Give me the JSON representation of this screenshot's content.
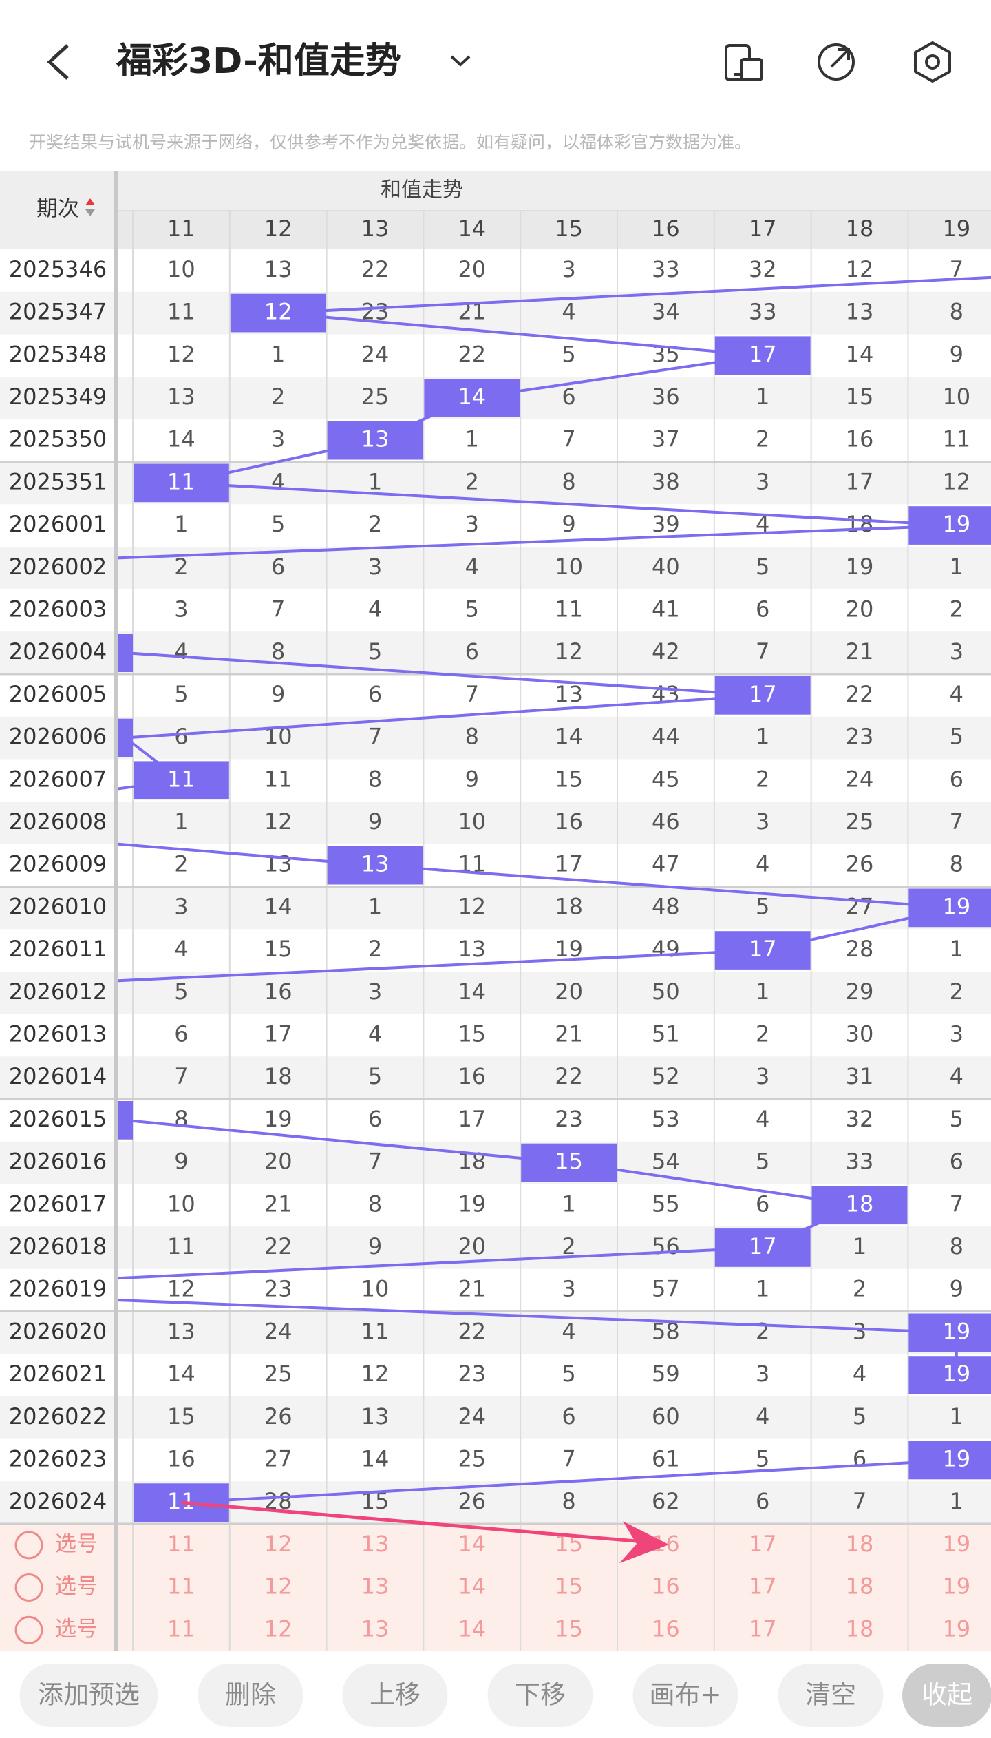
{
  "header": {
    "title": "福彩3D-和值走势"
  },
  "notice": "开奖结果与试机号来源于网络，仅供参考不作为兑奖依据。如有疑问，以福体彩官方数据为准。",
  "table": {
    "period_label": "期次",
    "group_label": "和值走势",
    "columns": [
      11,
      12,
      13,
      14,
      15,
      16,
      17,
      18,
      19
    ],
    "rows": [
      {
        "period": "2025346",
        "values": [
          10,
          13,
          22,
          20,
          3,
          33,
          32,
          12,
          7
        ],
        "highlight": "right"
      },
      {
        "period": "2025347",
        "values": [
          11,
          12,
          23,
          21,
          4,
          34,
          33,
          13,
          8
        ],
        "highlight": 1
      },
      {
        "period": "2025348",
        "values": [
          12,
          1,
          24,
          22,
          5,
          35,
          17,
          14,
          9
        ],
        "highlight": 6
      },
      {
        "period": "2025349",
        "values": [
          13,
          2,
          25,
          14,
          6,
          36,
          1,
          15,
          10
        ],
        "highlight": 3
      },
      {
        "period": "2025350",
        "values": [
          14,
          3,
          13,
          1,
          7,
          37,
          2,
          16,
          11
        ],
        "highlight": 2
      },
      {
        "period": "2025351",
        "values": [
          11,
          4,
          1,
          2,
          8,
          38,
          3,
          17,
          12
        ],
        "highlight": 0
      },
      {
        "period": "2026001",
        "values": [
          1,
          5,
          2,
          3,
          9,
          39,
          4,
          18,
          19
        ],
        "highlight": 8
      },
      {
        "period": "2026002",
        "values": [
          2,
          6,
          3,
          4,
          10,
          40,
          5,
          19,
          1
        ],
        "highlight": "left"
      },
      {
        "period": "2026003",
        "values": [
          3,
          7,
          4,
          5,
          11,
          41,
          6,
          20,
          2
        ],
        "highlight": "left"
      },
      {
        "period": "2026004",
        "values": [
          4,
          8,
          5,
          6,
          12,
          42,
          7,
          21,
          3
        ],
        "highlight": -1
      },
      {
        "period": "2026005",
        "values": [
          5,
          9,
          6,
          7,
          13,
          43,
          17,
          22,
          4
        ],
        "highlight": 6
      },
      {
        "period": "2026006",
        "values": [
          6,
          10,
          7,
          8,
          14,
          44,
          1,
          23,
          5
        ],
        "highlight": -1
      },
      {
        "period": "2026007",
        "values": [
          11,
          11,
          8,
          9,
          15,
          45,
          2,
          24,
          6
        ],
        "highlight": 0
      },
      {
        "period": "2026008",
        "values": [
          1,
          12,
          9,
          10,
          16,
          46,
          3,
          25,
          7
        ],
        "highlight": "left"
      },
      {
        "period": "2026009",
        "values": [
          2,
          13,
          13,
          11,
          17,
          47,
          4,
          26,
          8
        ],
        "highlight": 2
      },
      {
        "period": "2026010",
        "values": [
          3,
          14,
          1,
          12,
          18,
          48,
          5,
          27,
          19
        ],
        "highlight": 8
      },
      {
        "period": "2026011",
        "values": [
          4,
          15,
          2,
          13,
          19,
          49,
          17,
          28,
          1
        ],
        "highlight": 6
      },
      {
        "period": "2026012",
        "values": [
          5,
          16,
          3,
          14,
          20,
          50,
          1,
          29,
          2
        ],
        "highlight": "left"
      },
      {
        "period": "2026013",
        "values": [
          6,
          17,
          4,
          15,
          21,
          51,
          2,
          30,
          3
        ],
        "highlight": "left"
      },
      {
        "period": "2026014",
        "values": [
          7,
          18,
          5,
          16,
          22,
          52,
          3,
          31,
          4
        ],
        "highlight": "left"
      },
      {
        "period": "2026015",
        "values": [
          8,
          19,
          6,
          17,
          23,
          53,
          4,
          32,
          5
        ],
        "highlight": -1
      },
      {
        "period": "2026016",
        "values": [
          9,
          20,
          7,
          18,
          15,
          54,
          5,
          33,
          6
        ],
        "highlight": 4
      },
      {
        "period": "2026017",
        "values": [
          10,
          21,
          8,
          19,
          1,
          55,
          6,
          18,
          7
        ],
        "highlight": 7
      },
      {
        "period": "2026018",
        "values": [
          11,
          22,
          9,
          20,
          2,
          56,
          17,
          1,
          8
        ],
        "highlight": 6
      },
      {
        "period": "2026019",
        "values": [
          12,
          23,
          10,
          21,
          3,
          57,
          1,
          2,
          9
        ],
        "highlight": "left"
      },
      {
        "period": "2026020",
        "values": [
          13,
          24,
          11,
          22,
          4,
          58,
          2,
          3,
          19
        ],
        "highlight": 8
      },
      {
        "period": "2026021",
        "values": [
          14,
          25,
          12,
          23,
          5,
          59,
          3,
          4,
          19
        ],
        "highlight": 8
      },
      {
        "period": "2026022",
        "values": [
          15,
          26,
          13,
          24,
          6,
          60,
          4,
          5,
          1
        ],
        "highlight": "right"
      },
      {
        "period": "2026023",
        "values": [
          16,
          27,
          14,
          25,
          7,
          61,
          5,
          6,
          19
        ],
        "highlight": 8
      },
      {
        "period": "2026024",
        "values": [
          11,
          28,
          15,
          26,
          8,
          62,
          6,
          7,
          1
        ],
        "highlight": 0
      }
    ],
    "pick_rows": [
      {
        "label": "选号",
        "values": [
          11,
          12,
          13,
          14,
          15,
          16,
          17,
          18,
          19
        ]
      },
      {
        "label": "选号",
        "values": [
          11,
          12,
          13,
          14,
          15,
          16,
          17,
          18,
          19
        ]
      },
      {
        "label": "选号",
        "values": [
          11,
          12,
          13,
          14,
          15,
          16,
          17,
          18,
          19
        ]
      }
    ]
  },
  "buttons": [
    "添加预选",
    "删除",
    "上移",
    "下移",
    "画布+",
    "清空",
    "收起"
  ]
}
